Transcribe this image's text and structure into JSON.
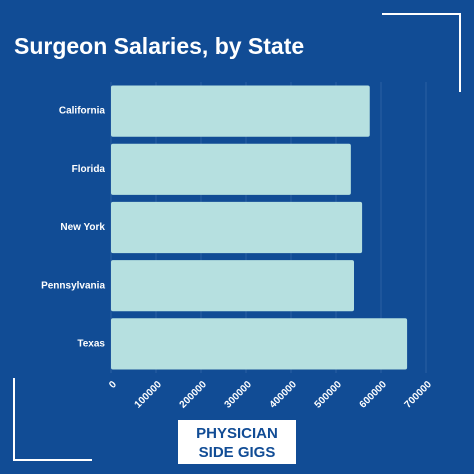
{
  "chart_data": {
    "type": "bar",
    "orientation": "horizontal",
    "title": "Surgeon Salaries, by State",
    "categories": [
      "California",
      "Florida",
      "New York",
      "Pennsylvania",
      "Texas"
    ],
    "values": [
      575000,
      533000,
      558000,
      540000,
      658000
    ],
    "color": "#b6e0e0",
    "xlim": [
      0,
      700000
    ],
    "xticks": [
      0,
      100000,
      200000,
      300000,
      400000,
      500000,
      600000,
      700000
    ],
    "grid": true
  },
  "logo": {
    "line1": "PHYSICIAN",
    "line2": "SIDE GIGS"
  }
}
